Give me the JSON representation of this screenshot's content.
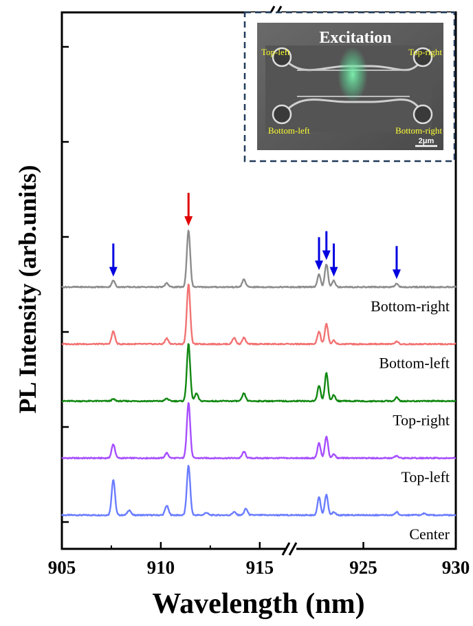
{
  "chart_data": {
    "type": "line",
    "xlabel": "Wavelength (nm)",
    "ylabel": "PL Intensity (arb.units)",
    "xlim": [
      905,
      930
    ],
    "axis_break": {
      "left_range": [
        905,
        916.5
      ],
      "right_range": [
        921,
        930
      ]
    },
    "x_ticks": [
      905,
      910,
      915,
      925,
      930
    ],
    "y_ticks": "unlabeled",
    "stacking": "vertical offset",
    "series": [
      {
        "name": "Center",
        "color": "#6a7cff",
        "offset": 0,
        "peaks": [
          [
            907.6,
            0.56
          ],
          [
            908.4,
            0.08
          ],
          [
            910.3,
            0.15
          ],
          [
            911.4,
            0.78
          ],
          [
            912.3,
            0.04
          ],
          [
            913.7,
            0.05
          ],
          [
            914.3,
            0.1
          ],
          [
            922.6,
            0.28
          ],
          [
            923.0,
            0.32
          ],
          [
            923.4,
            0.05
          ],
          [
            926.8,
            0.05
          ],
          [
            928.3,
            0.03
          ]
        ]
      },
      {
        "name": "Top-left",
        "color": "#a64dff",
        "offset": 0.9,
        "peaks": [
          [
            907.6,
            0.22
          ],
          [
            910.3,
            0.08
          ],
          [
            911.4,
            0.88
          ],
          [
            914.2,
            0.1
          ],
          [
            922.6,
            0.24
          ],
          [
            923.0,
            0.34
          ],
          [
            923.4,
            0.06
          ],
          [
            926.8,
            0.04
          ]
        ]
      },
      {
        "name": "Top-right",
        "color": "#118811",
        "offset": 1.8,
        "peaks": [
          [
            907.6,
            0.03
          ],
          [
            910.3,
            0.04
          ],
          [
            911.4,
            0.9
          ],
          [
            911.8,
            0.12
          ],
          [
            914.2,
            0.12
          ],
          [
            922.6,
            0.24
          ],
          [
            923.0,
            0.44
          ],
          [
            923.4,
            0.1
          ],
          [
            926.8,
            0.06
          ]
        ]
      },
      {
        "name": "Bottom-left",
        "color": "#f27272",
        "offset": 2.7,
        "peaks": [
          [
            907.6,
            0.2
          ],
          [
            910.3,
            0.09
          ],
          [
            911.4,
            0.95
          ],
          [
            913.7,
            0.1
          ],
          [
            914.2,
            0.1
          ],
          [
            922.6,
            0.2
          ],
          [
            923.0,
            0.32
          ],
          [
            923.4,
            0.06
          ],
          [
            926.8,
            0.04
          ]
        ]
      },
      {
        "name": "Bottom-right",
        "color": "#8c8c8c",
        "offset": 3.6,
        "peaks": [
          [
            907.6,
            0.1
          ],
          [
            910.3,
            0.06
          ],
          [
            911.4,
            0.9
          ],
          [
            914.2,
            0.12
          ],
          [
            922.6,
            0.2
          ],
          [
            923.0,
            0.36
          ],
          [
            923.4,
            0.1
          ],
          [
            926.8,
            0.06
          ]
        ]
      }
    ],
    "arrows": [
      {
        "x": 907.6,
        "color": "#0000e0"
      },
      {
        "x": 911.4,
        "color": "#e00000"
      },
      {
        "x": 922.6,
        "color": "#0000e0"
      },
      {
        "x": 923.0,
        "color": "#0000e0"
      },
      {
        "x": 923.4,
        "color": "#0000e0"
      },
      {
        "x": 926.8,
        "color": "#0000e0"
      }
    ]
  },
  "inset": {
    "title": "Excitation",
    "labels": {
      "top_left": "Top-left",
      "top_right": "Top-right",
      "bottom_left": "Bottom-left",
      "bottom_right": "Bottom-right"
    },
    "scale_bar": "2μm",
    "label_color": "#ffff33",
    "frame_color": "#203a5a"
  }
}
